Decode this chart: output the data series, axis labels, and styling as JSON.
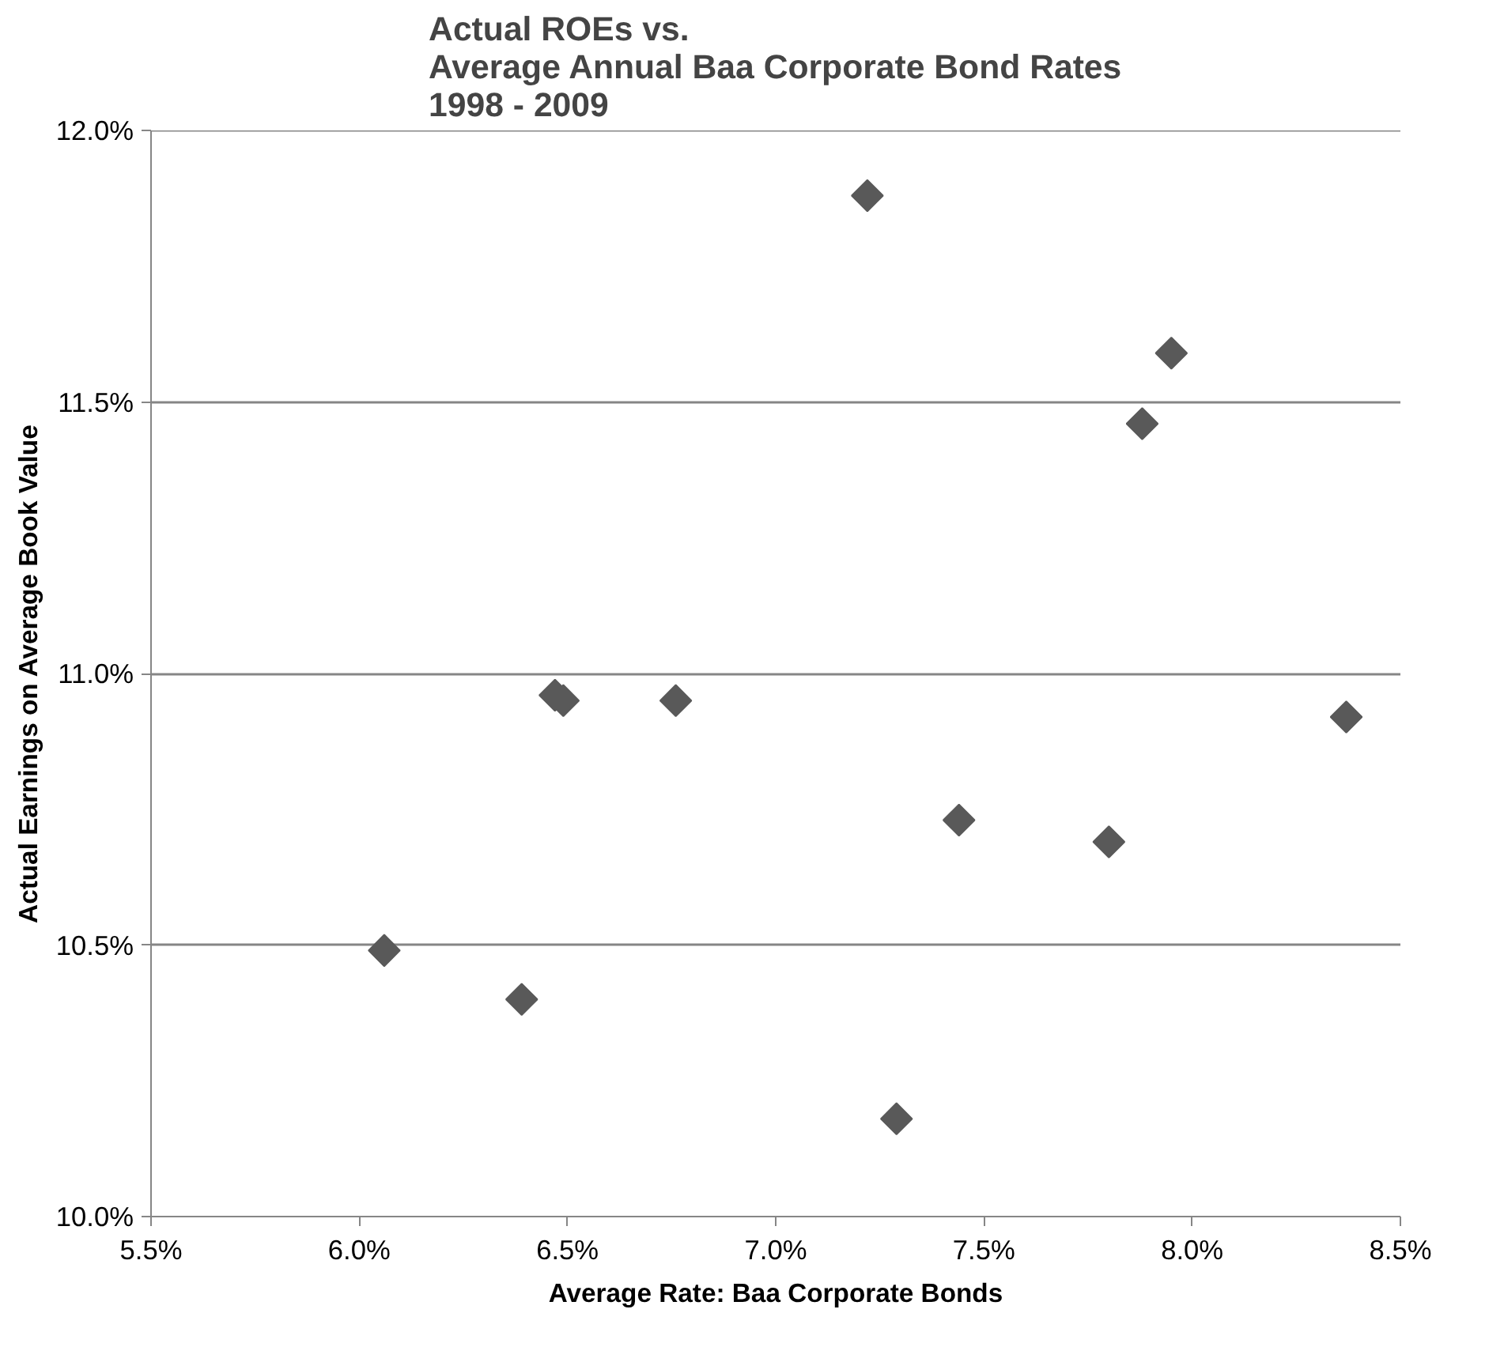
{
  "chart_data": {
    "type": "scatter",
    "title": "Actual ROEs vs.\nAverage Annual Baa Corporate Bond Rates\n1998 - 2009",
    "xlabel": "Average Rate: Baa Corporate Bonds",
    "ylabel": "Actual Earnings on Average Book Value",
    "x": [
      6.06,
      6.39,
      6.47,
      6.49,
      6.76,
      7.22,
      7.29,
      7.44,
      7.8,
      7.88,
      7.95,
      8.37
    ],
    "values": [
      10.49,
      10.4,
      10.96,
      10.95,
      10.95,
      11.88,
      10.18,
      10.73,
      10.69,
      11.46,
      11.59,
      10.92
    ],
    "color": "#595959",
    "marker": "diamond",
    "grid": "y",
    "xlim": [
      5.5,
      8.5
    ],
    "xticks": [
      {
        "value": 5.5,
        "label": "5.5%"
      },
      {
        "value": 6.0,
        "label": "6.0%"
      },
      {
        "value": 6.5,
        "label": "6.5%"
      },
      {
        "value": 7.0,
        "label": "7.0%"
      },
      {
        "value": 7.5,
        "label": "7.5%"
      },
      {
        "value": 8.0,
        "label": "8.0%"
      },
      {
        "value": 8.5,
        "label": "8.5%"
      }
    ],
    "ylim": [
      10.0,
      12.0
    ],
    "yticks": [
      {
        "value": 10.0,
        "label": "10.0%"
      },
      {
        "value": 10.5,
        "label": "10.5%"
      },
      {
        "value": 11.0,
        "label": "11.0%"
      },
      {
        "value": 11.5,
        "label": "11.5%"
      },
      {
        "value": 12.0,
        "label": "12.0%"
      }
    ]
  }
}
